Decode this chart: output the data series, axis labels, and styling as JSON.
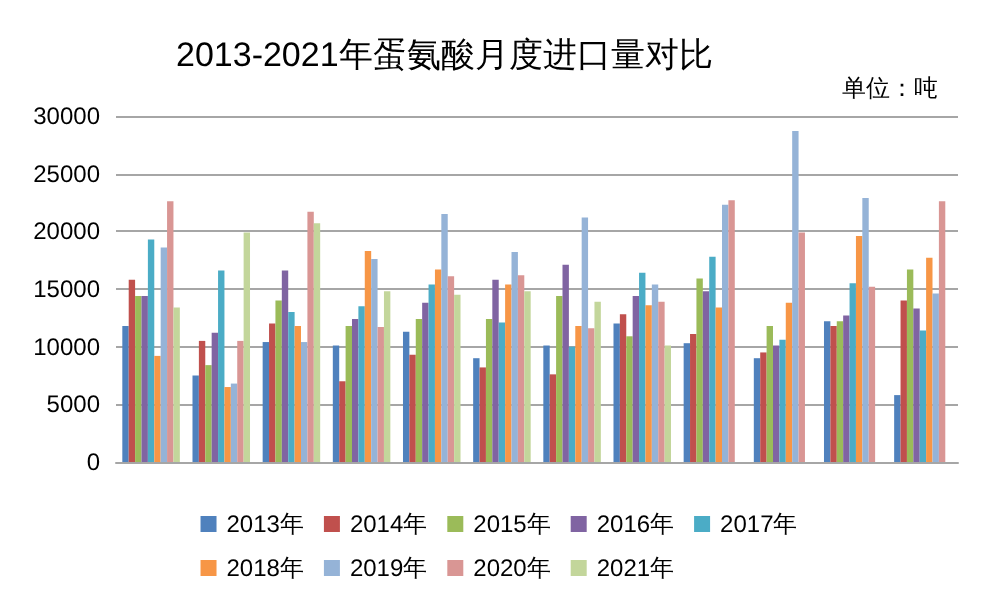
{
  "chart_data": {
    "type": "bar",
    "title": "2013-2021年蛋氨酸月度进口量对比",
    "annotations": [
      "单位：吨"
    ],
    "categories": [
      null,
      null,
      null,
      null,
      null,
      null,
      null,
      null,
      null,
      null,
      null,
      null
    ],
    "ylim": [
      0,
      30000
    ],
    "yticks": [
      0,
      5000,
      10000,
      15000,
      20000,
      25000,
      30000
    ],
    "grid": "y",
    "legend": "bottom",
    "series": [
      {
        "name": "2013年",
        "color": "#4f81bd",
        "values": [
          11800,
          7500,
          10400,
          10100,
          11300,
          9000,
          10100,
          12000,
          10300,
          9000,
          12200,
          5800
        ]
      },
      {
        "name": "2014年",
        "color": "#c0504d",
        "values": [
          15800,
          10500,
          12000,
          7000,
          9300,
          8200,
          7600,
          12800,
          11100,
          9500,
          11800,
          14000
        ]
      },
      {
        "name": "2015年",
        "color": "#9bbb59",
        "values": [
          14400,
          8400,
          14000,
          11800,
          12400,
          12400,
          14400,
          10900,
          15900,
          11800,
          12200,
          16700
        ]
      },
      {
        "name": "2016年",
        "color": "#8064a2",
        "values": [
          14400,
          11200,
          16600,
          12400,
          13800,
          15800,
          17100,
          14400,
          14800,
          10100,
          12700,
          13300
        ]
      },
      {
        "name": "2017年",
        "color": "#4bacc6",
        "values": [
          19300,
          16600,
          13000,
          13500,
          15400,
          12100,
          10000,
          16400,
          17800,
          10600,
          15500,
          11400
        ]
      },
      {
        "name": "2018年",
        "color": "#f79646",
        "values": [
          9200,
          6500,
          11800,
          18300,
          16700,
          15400,
          11800,
          13600,
          13400,
          13800,
          19600,
          17700
        ]
      },
      {
        "name": "2019年",
        "color": "#95b3d7",
        "values": [
          18600,
          6800,
          10400,
          17600,
          21500,
          18200,
          21200,
          15400,
          22300,
          28700,
          22900,
          14600
        ]
      },
      {
        "name": "2020年",
        "color": "#d99694",
        "values": [
          22600,
          10500,
          21700,
          11700,
          16100,
          16200,
          11600,
          13900,
          22700,
          19900,
          15200,
          22600
        ]
      },
      {
        "name": "2021年",
        "color": "#c3d69b",
        "values": [
          13400,
          19900,
          20700,
          14800,
          14500,
          14800,
          13900,
          10100,
          null,
          null,
          null,
          null
        ]
      }
    ]
  }
}
